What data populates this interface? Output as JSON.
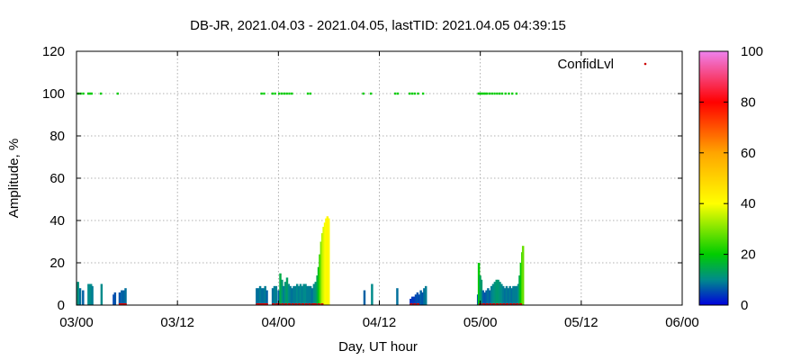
{
  "chart_data": {
    "type": "area",
    "title": "DB-JR, 2021.04.03 - 2021.04.05, lastTID: 2021.04.05 04:39:15",
    "xlabel": "Day, UT hour",
    "ylabel": "Amplitude, %",
    "xlim": [
      0,
      72
    ],
    "ylim": [
      0,
      120
    ],
    "x_ticks": [
      {
        "value": 0,
        "label": "03/00"
      },
      {
        "value": 12,
        "label": "03/12"
      },
      {
        "value": 24,
        "label": "04/00"
      },
      {
        "value": 36,
        "label": "04/12"
      },
      {
        "value": 48,
        "label": "05/00"
      },
      {
        "value": 60,
        "label": "05/12"
      },
      {
        "value": 72,
        "label": "06/00"
      }
    ],
    "y_ticks": [
      0,
      20,
      40,
      60,
      80,
      100,
      120
    ],
    "grid": true,
    "legend": {
      "label": "ConfidLvl",
      "placement": "top-right",
      "marker_color": "#cc0000"
    },
    "colorbar": {
      "min": 0,
      "max": 100,
      "ticks": [
        0,
        20,
        40,
        60,
        80,
        100
      ],
      "stops": [
        {
          "value": 0,
          "color": "#0000dd"
        },
        {
          "value": 10,
          "color": "#008b8b"
        },
        {
          "value": 20,
          "color": "#00cc00"
        },
        {
          "value": 40,
          "color": "#ffff00"
        },
        {
          "value": 60,
          "color": "#ffa500"
        },
        {
          "value": 80,
          "color": "#ff0000"
        },
        {
          "value": 100,
          "color": "#ee82ee"
        }
      ]
    },
    "amplitude_series": [
      {
        "x": 0.15,
        "y": 11
      },
      {
        "x": 0.4,
        "y": 8
      },
      {
        "x": 0.75,
        "y": 7
      },
      {
        "x": 1.4,
        "y": 10
      },
      {
        "x": 1.55,
        "y": 10
      },
      {
        "x": 1.7,
        "y": 10
      },
      {
        "x": 1.85,
        "y": 9
      },
      {
        "x": 2.95,
        "y": 10
      },
      {
        "x": 4.4,
        "y": 5
      },
      {
        "x": 4.55,
        "y": 6
      },
      {
        "x": 5.1,
        "y": 6
      },
      {
        "x": 5.35,
        "y": 7
      },
      {
        "x": 5.6,
        "y": 7
      },
      {
        "x": 5.8,
        "y": 8
      },
      {
        "x": 21.4,
        "y": 8
      },
      {
        "x": 21.6,
        "y": 8
      },
      {
        "x": 21.8,
        "y": 9
      },
      {
        "x": 22.0,
        "y": 8
      },
      {
        "x": 22.2,
        "y": 8
      },
      {
        "x": 22.4,
        "y": 9
      },
      {
        "x": 22.6,
        "y": 7
      },
      {
        "x": 23.3,
        "y": 8
      },
      {
        "x": 23.5,
        "y": 9
      },
      {
        "x": 23.7,
        "y": 9
      },
      {
        "x": 24.0,
        "y": 7
      },
      {
        "x": 24.2,
        "y": 15
      },
      {
        "x": 24.4,
        "y": 12
      },
      {
        "x": 24.6,
        "y": 9
      },
      {
        "x": 24.8,
        "y": 11
      },
      {
        "x": 25.0,
        "y": 13
      },
      {
        "x": 25.2,
        "y": 10
      },
      {
        "x": 25.4,
        "y": 9
      },
      {
        "x": 25.6,
        "y": 8
      },
      {
        "x": 25.8,
        "y": 9
      },
      {
        "x": 26.0,
        "y": 9
      },
      {
        "x": 26.2,
        "y": 10
      },
      {
        "x": 26.4,
        "y": 9
      },
      {
        "x": 26.6,
        "y": 10
      },
      {
        "x": 26.8,
        "y": 9
      },
      {
        "x": 27.0,
        "y": 10
      },
      {
        "x": 27.2,
        "y": 10
      },
      {
        "x": 27.4,
        "y": 9
      },
      {
        "x": 27.6,
        "y": 9
      },
      {
        "x": 27.8,
        "y": 9
      },
      {
        "x": 28.0,
        "y": 8
      },
      {
        "x": 28.2,
        "y": 10
      },
      {
        "x": 28.4,
        "y": 11
      },
      {
        "x": 28.6,
        "y": 14
      },
      {
        "x": 28.75,
        "y": 18
      },
      {
        "x": 28.9,
        "y": 24
      },
      {
        "x": 29.05,
        "y": 30
      },
      {
        "x": 29.2,
        "y": 34
      },
      {
        "x": 29.35,
        "y": 37
      },
      {
        "x": 29.5,
        "y": 39
      },
      {
        "x": 29.65,
        "y": 41
      },
      {
        "x": 29.8,
        "y": 42
      },
      {
        "x": 29.95,
        "y": 41
      },
      {
        "x": 34.2,
        "y": 7
      },
      {
        "x": 35.1,
        "y": 10
      },
      {
        "x": 38.1,
        "y": 8
      },
      {
        "x": 39.7,
        "y": 3
      },
      {
        "x": 39.9,
        "y": 4
      },
      {
        "x": 40.1,
        "y": 4
      },
      {
        "x": 40.3,
        "y": 5
      },
      {
        "x": 40.5,
        "y": 6
      },
      {
        "x": 40.7,
        "y": 5
      },
      {
        "x": 40.9,
        "y": 7
      },
      {
        "x": 41.1,
        "y": 6
      },
      {
        "x": 41.3,
        "y": 8
      },
      {
        "x": 41.5,
        "y": 9
      },
      {
        "x": 47.7,
        "y": 5
      },
      {
        "x": 47.8,
        "y": 20
      },
      {
        "x": 47.95,
        "y": 14
      },
      {
        "x": 48.1,
        "y": 12
      },
      {
        "x": 48.3,
        "y": 7
      },
      {
        "x": 48.5,
        "y": 6
      },
      {
        "x": 48.7,
        "y": 7
      },
      {
        "x": 48.9,
        "y": 8
      },
      {
        "x": 49.1,
        "y": 7
      },
      {
        "x": 49.3,
        "y": 9
      },
      {
        "x": 49.5,
        "y": 10
      },
      {
        "x": 49.7,
        "y": 11
      },
      {
        "x": 49.9,
        "y": 12
      },
      {
        "x": 50.1,
        "y": 12
      },
      {
        "x": 50.3,
        "y": 11
      },
      {
        "x": 50.5,
        "y": 10
      },
      {
        "x": 50.7,
        "y": 9
      },
      {
        "x": 50.9,
        "y": 8
      },
      {
        "x": 51.1,
        "y": 9
      },
      {
        "x": 51.3,
        "y": 8
      },
      {
        "x": 51.5,
        "y": 9
      },
      {
        "x": 51.7,
        "y": 8
      },
      {
        "x": 51.9,
        "y": 9
      },
      {
        "x": 52.1,
        "y": 9
      },
      {
        "x": 52.3,
        "y": 9
      },
      {
        "x": 52.5,
        "y": 10
      },
      {
        "x": 52.65,
        "y": 14
      },
      {
        "x": 52.8,
        "y": 20
      },
      {
        "x": 52.95,
        "y": 25
      },
      {
        "x": 53.05,
        "y": 28
      }
    ],
    "confidence_points": [
      {
        "x": 0.2,
        "y": 100
      },
      {
        "x": 0.5,
        "y": 100
      },
      {
        "x": 0.8,
        "y": 100
      },
      {
        "x": 1.4,
        "y": 100
      },
      {
        "x": 1.6,
        "y": 100
      },
      {
        "x": 1.8,
        "y": 100
      },
      {
        "x": 2.9,
        "y": 100
      },
      {
        "x": 4.9,
        "y": 100
      },
      {
        "x": 22.0,
        "y": 100
      },
      {
        "x": 22.3,
        "y": 100
      },
      {
        "x": 23.3,
        "y": 100
      },
      {
        "x": 23.6,
        "y": 100
      },
      {
        "x": 24.1,
        "y": 100
      },
      {
        "x": 24.4,
        "y": 100
      },
      {
        "x": 24.7,
        "y": 100
      },
      {
        "x": 25.0,
        "y": 100
      },
      {
        "x": 25.3,
        "y": 100
      },
      {
        "x": 25.6,
        "y": 100
      },
      {
        "x": 27.5,
        "y": 100
      },
      {
        "x": 27.8,
        "y": 100
      },
      {
        "x": 34.1,
        "y": 100
      },
      {
        "x": 35.0,
        "y": 100
      },
      {
        "x": 37.9,
        "y": 100
      },
      {
        "x": 38.2,
        "y": 100
      },
      {
        "x": 39.6,
        "y": 100
      },
      {
        "x": 39.9,
        "y": 100
      },
      {
        "x": 40.2,
        "y": 100
      },
      {
        "x": 40.6,
        "y": 100
      },
      {
        "x": 41.2,
        "y": 100
      },
      {
        "x": 47.8,
        "y": 100
      },
      {
        "x": 48.0,
        "y": 100
      },
      {
        "x": 48.2,
        "y": 100
      },
      {
        "x": 48.4,
        "y": 100
      },
      {
        "x": 48.6,
        "y": 100
      },
      {
        "x": 48.8,
        "y": 100
      },
      {
        "x": 49.1,
        "y": 100
      },
      {
        "x": 49.4,
        "y": 100
      },
      {
        "x": 49.7,
        "y": 100
      },
      {
        "x": 50.0,
        "y": 100
      },
      {
        "x": 50.3,
        "y": 100
      },
      {
        "x": 50.6,
        "y": 100
      },
      {
        "x": 51.0,
        "y": 100
      },
      {
        "x": 51.4,
        "y": 100
      },
      {
        "x": 51.8,
        "y": 100
      },
      {
        "x": 52.3,
        "y": 100
      }
    ],
    "low_markers_x": [
      5.2,
      5.5,
      5.8,
      21.5,
      21.8,
      22.1,
      22.4,
      22.6,
      23.4,
      23.8,
      24.1,
      24.5,
      24.9,
      25.3,
      25.7,
      26.1,
      26.5,
      26.9,
      27.3,
      27.7,
      28.1,
      28.4,
      28.8,
      29.2,
      39.8,
      40.2,
      40.6,
      48.0,
      48.4,
      48.8,
      49.2,
      49.6,
      50.0,
      50.4,
      50.8,
      51.2,
      51.6,
      52.0,
      52.4,
      52.8
    ]
  }
}
